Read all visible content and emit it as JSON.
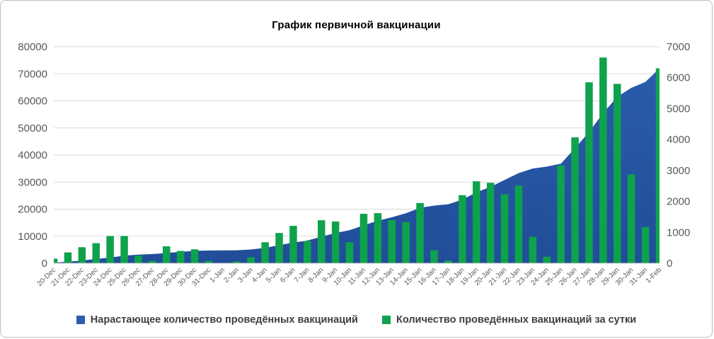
{
  "frame": {
    "background": "#ffffff",
    "border_color": "#bdbdbd"
  },
  "chart_data": {
    "type": "combo",
    "title": "График первичной вакцинации",
    "grid": true,
    "legend_position": "bottom",
    "gridline_color": "#d9d9d9",
    "tick_color": "#595959",
    "categories": [
      "20-Dec",
      "21-Dec",
      "22-Dec",
      "23-Dec",
      "24-Dec",
      "25-Dec",
      "26-Dec",
      "27-Dec",
      "28-Dec",
      "29-Dec",
      "30-Dec",
      "31-Dec",
      "1-Jan",
      "2-Jan",
      "3-Jan",
      "4-Jan",
      "5-Jan",
      "6-Jan",
      "7-Jan",
      "8-Jan",
      "9-Jan",
      "10-Jan",
      "11-Jan",
      "12-Jan",
      "13-Jan",
      "14-Jan",
      "15-Jan",
      "16-Jan",
      "17-Jan",
      "18-Jan",
      "19-Jan",
      "20-Jan",
      "21-Jan",
      "22-Jan",
      "23-Jan",
      "24-Jan",
      "25-Jan",
      "26-Jan",
      "27-Jan",
      "28-Jan",
      "29-Jan",
      "30-Jan",
      "31-Jan",
      "1-Feb"
    ],
    "left_axis": {
      "min": 0,
      "max": 80000,
      "ticks": [
        0,
        10000,
        20000,
        30000,
        40000,
        50000,
        60000,
        70000,
        80000
      ]
    },
    "right_axis": {
      "min": 0,
      "max": 7000,
      "ticks": [
        0,
        1000,
        2000,
        3000,
        4000,
        5000,
        6000,
        7000
      ]
    },
    "series": [
      {
        "name": "Нарастающее количество проведённых вакцинаций",
        "type": "area",
        "axis": "left",
        "color": "#2a5cab",
        "color_bottom": "#214d99",
        "values": [
          200,
          600,
          1000,
          1600,
          2100,
          2800,
          3200,
          3400,
          3800,
          4200,
          4600,
          4700,
          4750,
          4800,
          5100,
          5700,
          6700,
          7600,
          8400,
          9800,
          11200,
          12200,
          14000,
          15700,
          17000,
          18500,
          20500,
          21300,
          21800,
          23500,
          26200,
          28200,
          30800,
          33300,
          35000,
          35700,
          36800,
          42500,
          48500,
          55500,
          61500,
          64800,
          67000,
          72000
        ]
      },
      {
        "name": "Количество проведённых вакцинаций за сутки",
        "type": "bar",
        "axis": "right",
        "color": "#0fa24c",
        "values": [
          150,
          350,
          520,
          650,
          880,
          880,
          250,
          80,
          550,
          400,
          450,
          80,
          0,
          60,
          190,
          680,
          980,
          1210,
          720,
          1390,
          1350,
          680,
          1600,
          1620,
          1400,
          1330,
          1950,
          420,
          90,
          2200,
          2650,
          2600,
          2230,
          2510,
          850,
          210,
          3160,
          4070,
          5850,
          6650,
          5800,
          2870,
          1170,
          6300
        ]
      }
    ]
  }
}
